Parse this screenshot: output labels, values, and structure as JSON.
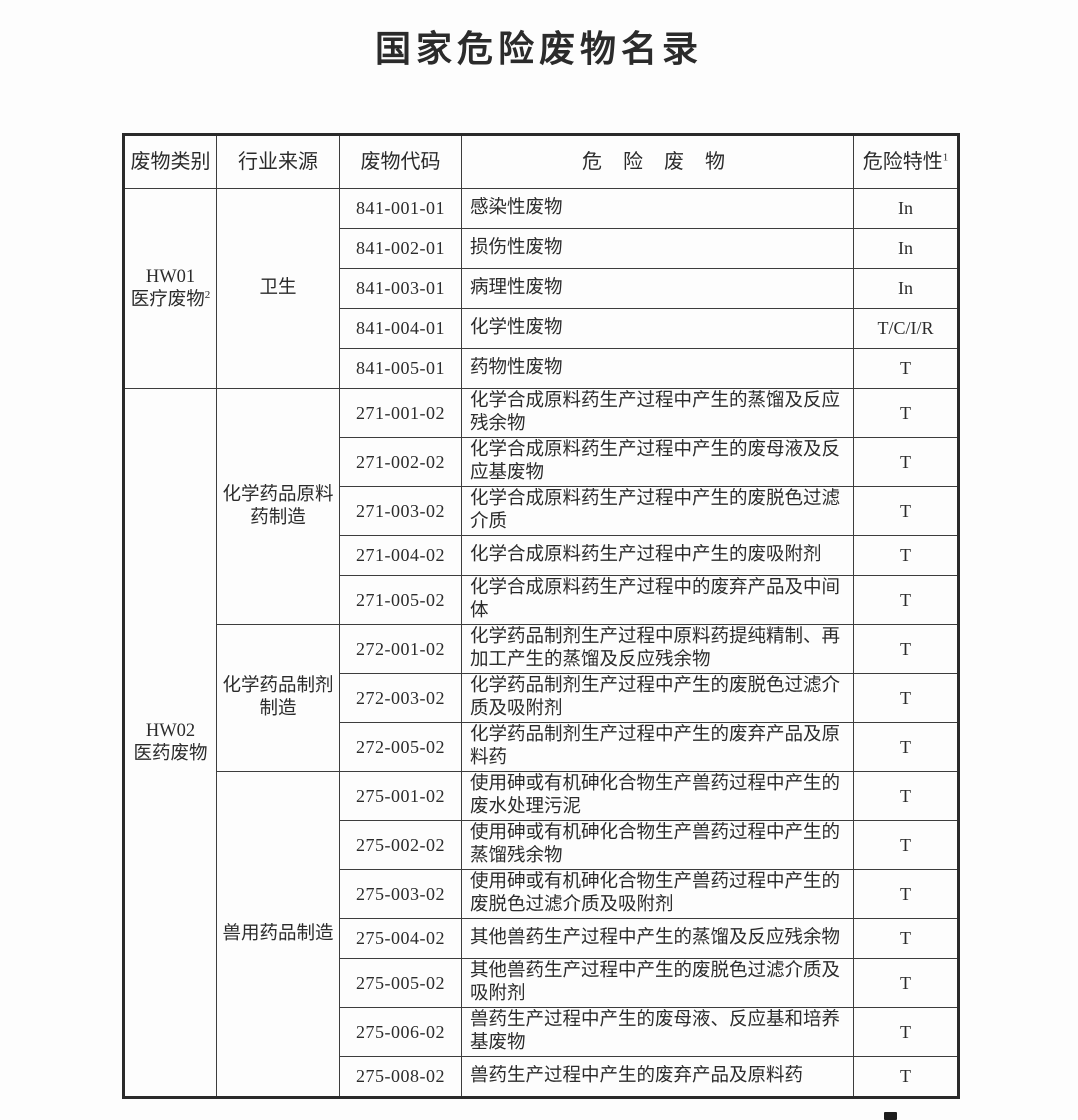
{
  "page": {
    "title": "国家危险废物名录"
  },
  "table": {
    "headers": {
      "category": "废物类别",
      "industry": "行业来源",
      "code": "废物代码",
      "waste": "危 险 废 物",
      "characteristic": "危险特性",
      "characteristic_footnote": "1"
    },
    "groups": [
      {
        "category_code": "HW01",
        "category_name": "医疗废物",
        "category_footnote": "2",
        "industries": [
          {
            "name": "卫生",
            "rows": [
              {
                "code": "841-001-01",
                "waste": "感染性废物",
                "characteristic": "In"
              },
              {
                "code": "841-002-01",
                "waste": "损伤性废物",
                "characteristic": "In"
              },
              {
                "code": "841-003-01",
                "waste": "病理性废物",
                "characteristic": "In"
              },
              {
                "code": "841-004-01",
                "waste": "化学性废物",
                "characteristic": "T/C/I/R"
              },
              {
                "code": "841-005-01",
                "waste": "药物性废物",
                "characteristic": "T"
              }
            ]
          }
        ]
      },
      {
        "category_code": "HW02",
        "category_name": "医药废物",
        "category_footnote": "",
        "industries": [
          {
            "name": "化学药品原料药制造",
            "rows": [
              {
                "code": "271-001-02",
                "waste": "化学合成原料药生产过程中产生的蒸馏及反应残余物",
                "characteristic": "T"
              },
              {
                "code": "271-002-02",
                "waste": "化学合成原料药生产过程中产生的废母液及反应基废物",
                "characteristic": "T"
              },
              {
                "code": "271-003-02",
                "waste": "化学合成原料药生产过程中产生的废脱色过滤介质",
                "characteristic": "T"
              },
              {
                "code": "271-004-02",
                "waste": "化学合成原料药生产过程中产生的废吸附剂",
                "characteristic": "T"
              },
              {
                "code": "271-005-02",
                "waste": "化学合成原料药生产过程中的废弃产品及中间体",
                "characteristic": "T"
              }
            ]
          },
          {
            "name": "化学药品制剂制造",
            "rows": [
              {
                "code": "272-001-02",
                "waste": "化学药品制剂生产过程中原料药提纯精制、再加工产生的蒸馏及反应残余物",
                "characteristic": "T"
              },
              {
                "code": "272-003-02",
                "waste": "化学药品制剂生产过程中产生的废脱色过滤介质及吸附剂",
                "characteristic": "T"
              },
              {
                "code": "272-005-02",
                "waste": "化学药品制剂生产过程中产生的废弃产品及原料药",
                "characteristic": "T"
              }
            ]
          },
          {
            "name": "兽用药品制造",
            "rows": [
              {
                "code": "275-001-02",
                "waste": "使用砷或有机砷化合物生产兽药过程中产生的废水处理污泥",
                "characteristic": "T"
              },
              {
                "code": "275-002-02",
                "waste": "使用砷或有机砷化合物生产兽药过程中产生的蒸馏残余物",
                "characteristic": "T"
              },
              {
                "code": "275-003-02",
                "waste": "使用砷或有机砷化合物生产兽药过程中产生的废脱色过滤介质及吸附剂",
                "characteristic": "T"
              },
              {
                "code": "275-004-02",
                "waste": "其他兽药生产过程中产生的蒸馏及反应残余物",
                "characteristic": "T"
              },
              {
                "code": "275-005-02",
                "waste": "其他兽药生产过程中产生的废脱色过滤介质及吸附剂",
                "characteristic": "T"
              },
              {
                "code": "275-006-02",
                "waste": "兽药生产过程中产生的废母液、反应基和培养基废物",
                "characteristic": "T"
              },
              {
                "code": "275-008-02",
                "waste": "兽药生产过程中产生的废弃产品及原料药",
                "characteristic": "T"
              }
            ]
          }
        ]
      }
    ]
  }
}
